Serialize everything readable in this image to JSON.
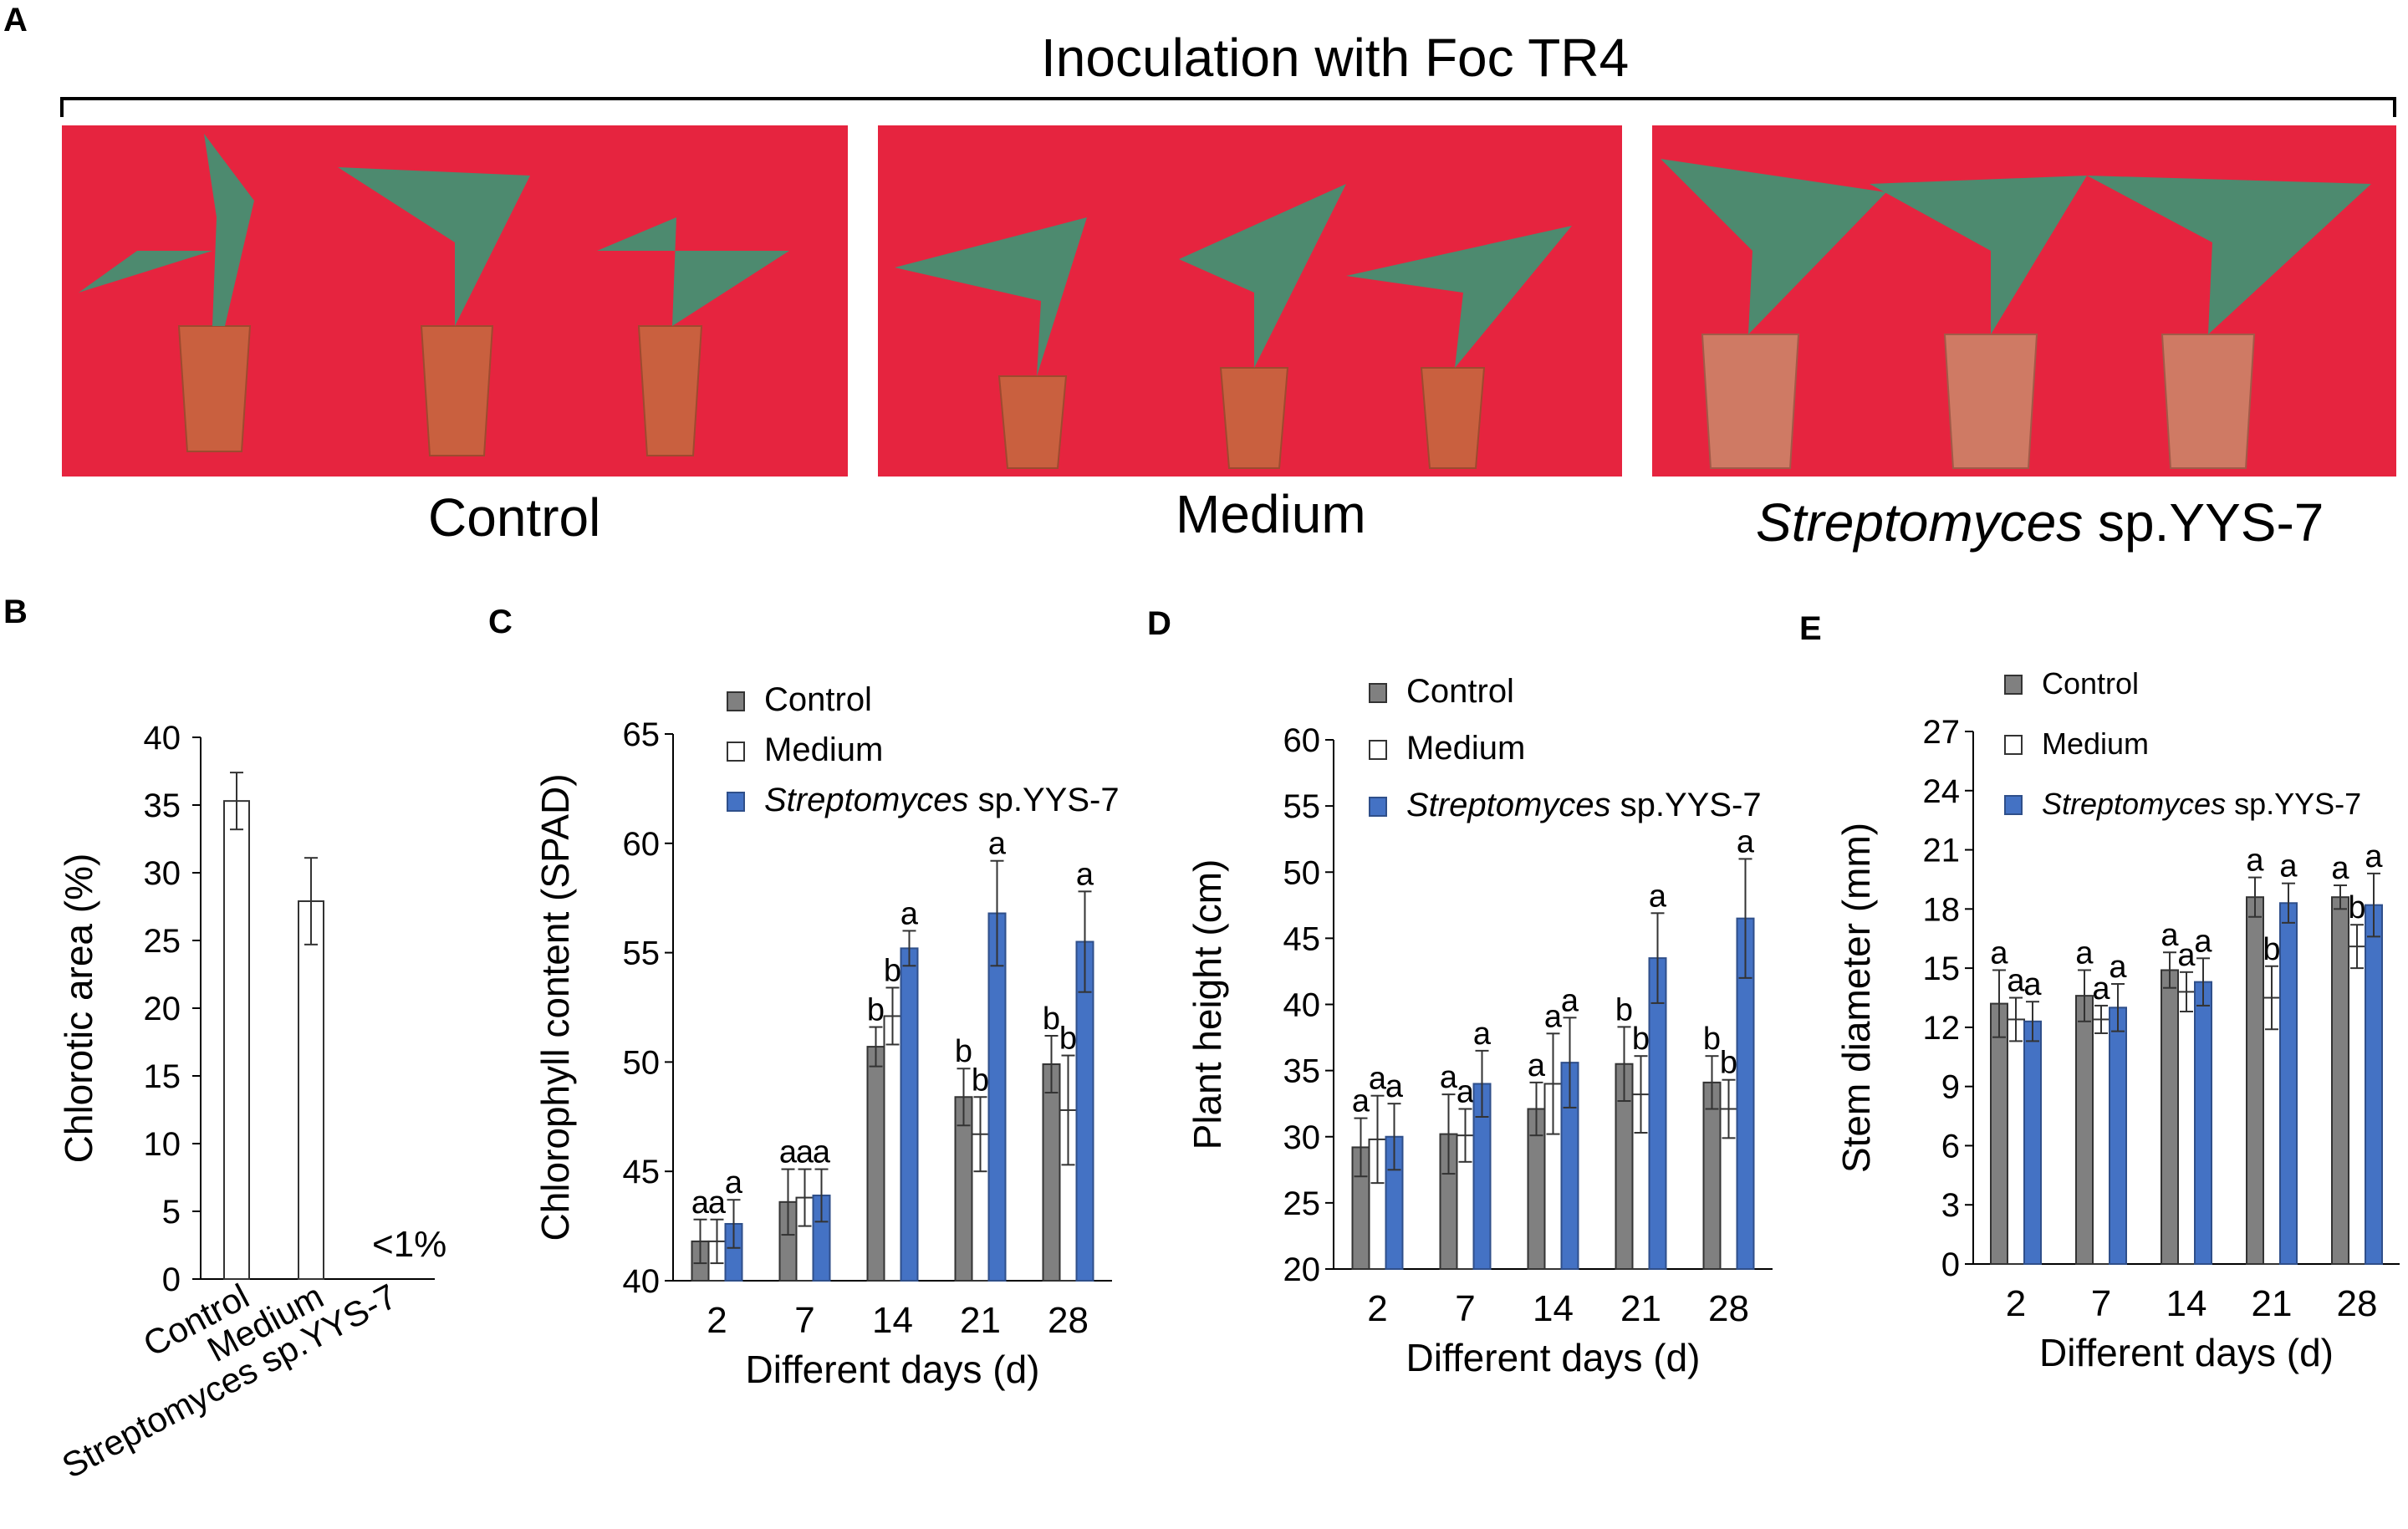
{
  "panels": {
    "a": "A",
    "b": "B",
    "c": "C",
    "d": "D",
    "e": "E"
  },
  "photo_banner": {
    "title": "Inoculation with Foc TR4",
    "captions": [
      "Control",
      "Medium"
    ],
    "caption3_italic": "Streptomyces",
    "caption3_rest": " sp.YYS-7"
  },
  "colors": {
    "control": "#808080",
    "medium": "#ffffff",
    "strep": "#4472c4",
    "background_photo": "#e6243f"
  },
  "chart_data": [
    {
      "id": "chlorotic",
      "type": "bar",
      "ylabel": "Chlorotic area (%)",
      "categories": [
        "Control",
        "Medium",
        "Streptomyces sp.YYS-7"
      ],
      "values": [
        35.3,
        27.9,
        null
      ],
      "errors": [
        2.1,
        3.2,
        null
      ],
      "annotation": "<1%",
      "ylim": [
        0,
        40
      ],
      "yticks": [
        0,
        5,
        10,
        15,
        20,
        25,
        30,
        35,
        40
      ]
    },
    {
      "id": "chlorophyll",
      "type": "bar",
      "ylabel": "Chlorophyll content (SPAD)",
      "xlabel": "Different days (d)",
      "categories": [
        "2",
        "7",
        "14",
        "21",
        "28"
      ],
      "legend": [
        {
          "name": "Control",
          "italic": ""
        },
        {
          "name": "Medium",
          "italic": ""
        },
        {
          "name": " sp.YYS-7",
          "italic": "Streptomyces"
        }
      ],
      "series": [
        {
          "name": "Control",
          "values": [
            41.8,
            43.6,
            50.7,
            48.4,
            49.9
          ],
          "errors": [
            1.0,
            1.5,
            0.9,
            1.3,
            1.3
          ],
          "letters": [
            "a",
            "a",
            "b",
            "b",
            "b"
          ]
        },
        {
          "name": "Medium",
          "values": [
            41.8,
            43.8,
            52.1,
            46.7,
            47.8
          ],
          "errors": [
            1.0,
            1.3,
            1.3,
            1.7,
            2.5
          ],
          "letters": [
            "a",
            "a",
            "b",
            "b",
            "b"
          ]
        },
        {
          "name": "Streptomyces sp.YYS-7",
          "values": [
            42.6,
            43.9,
            55.2,
            56.8,
            55.5
          ],
          "errors": [
            1.1,
            1.2,
            0.8,
            2.4,
            2.3
          ],
          "letters": [
            "a",
            "a",
            "a",
            "a",
            "a"
          ]
        }
      ],
      "ylim": [
        40,
        65
      ],
      "yticks": [
        40,
        45,
        50,
        55,
        60,
        65
      ]
    },
    {
      "id": "height",
      "type": "bar",
      "ylabel": "Plant height (cm)",
      "xlabel": "Different days (d)",
      "categories": [
        "2",
        "7",
        "14",
        "21",
        "28"
      ],
      "legend": [
        {
          "name": "Control",
          "italic": ""
        },
        {
          "name": "Medium",
          "italic": ""
        },
        {
          "name": " sp.YYS-7",
          "italic": "Streptomyces"
        }
      ],
      "series": [
        {
          "name": "Control",
          "values": [
            29.2,
            30.2,
            32.1,
            35.5,
            34.1
          ],
          "errors": [
            2.2,
            3.0,
            2.0,
            2.8,
            2.0
          ],
          "letters": [
            "a",
            "a",
            "a",
            "b",
            "b"
          ]
        },
        {
          "name": "Medium",
          "values": [
            29.8,
            30.1,
            34.0,
            33.2,
            32.1
          ],
          "errors": [
            3.3,
            2.0,
            3.8,
            2.9,
            2.2
          ],
          "letters": [
            "a",
            "a",
            "a",
            "b",
            "b"
          ]
        },
        {
          "name": "Streptomyces sp.YYS-7",
          "values": [
            30.0,
            34.0,
            35.6,
            43.5,
            46.5
          ],
          "errors": [
            2.5,
            2.5,
            3.4,
            3.4,
            4.5
          ],
          "letters": [
            "a",
            "a",
            "a",
            "a",
            "a"
          ]
        }
      ],
      "ylim": [
        20,
        60
      ],
      "yticks": [
        20,
        25,
        30,
        35,
        40,
        45,
        50,
        55,
        60
      ]
    },
    {
      "id": "stem",
      "type": "bar",
      "ylabel": "Stem diameter (mm)",
      "xlabel": "Different days (d)",
      "categories": [
        "2",
        "7",
        "14",
        "21",
        "28"
      ],
      "legend": [
        {
          "name": "Control",
          "italic": ""
        },
        {
          "name": "Medium",
          "italic": ""
        },
        {
          "name": " sp.YYS-7",
          "italic": "Streptomyces"
        }
      ],
      "series": [
        {
          "name": "Control",
          "values": [
            13.2,
            13.6,
            14.9,
            18.6,
            18.6
          ],
          "errors": [
            1.7,
            1.3,
            0.9,
            1.0,
            0.6
          ],
          "letters": [
            "a",
            "a",
            "a",
            "a",
            "a"
          ]
        },
        {
          "name": "Medium",
          "values": [
            12.4,
            12.4,
            13.8,
            13.5,
            16.1
          ],
          "errors": [
            1.1,
            0.7,
            1.0,
            1.6,
            1.1
          ],
          "letters": [
            "a",
            "a",
            "a",
            "b",
            "b"
          ]
        },
        {
          "name": "Streptomyces sp.YYS-7",
          "values": [
            12.3,
            13.0,
            14.3,
            18.3,
            18.2
          ],
          "errors": [
            1.0,
            1.2,
            1.2,
            1.0,
            1.6
          ],
          "letters": [
            "a",
            "a",
            "a",
            "a",
            "a"
          ]
        }
      ],
      "ylim": [
        0,
        27
      ],
      "yticks": [
        0,
        3,
        6,
        9,
        12,
        15,
        18,
        21,
        24,
        27
      ]
    }
  ]
}
